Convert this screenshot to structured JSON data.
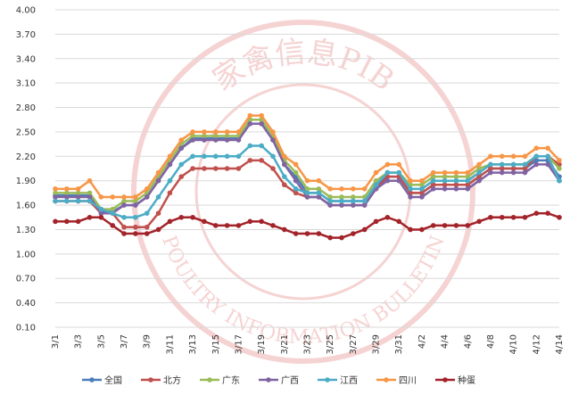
{
  "chart_data": {
    "type": "line",
    "watermark": {
      "top": "家禽信息PIB",
      "bottom": "POULTRY INFORMATION BULLETIN"
    },
    "categories": [
      "3/1",
      null,
      "3/3",
      null,
      "3/5",
      null,
      "3/7",
      null,
      "3/9",
      null,
      "3/11",
      null,
      "3/13",
      null,
      "3/15",
      null,
      "3/17",
      null,
      "3/19",
      null,
      "3/21",
      null,
      "3/23",
      null,
      "3/25",
      null,
      "3/27",
      null,
      "3/29",
      null,
      "3/31",
      null,
      "4/2",
      null,
      "4/4",
      null,
      "4/6",
      null,
      "4/8",
      null,
      "4/10",
      null,
      "4/12",
      null,
      "4/14"
    ],
    "ylim": [
      0.1,
      4.0
    ],
    "yticks": [
      {
        "value": 0.1,
        "label": "0.10"
      },
      {
        "value": 0.4,
        "label": "0.40"
      },
      {
        "value": 0.7,
        "label": "0.70"
      },
      {
        "value": 1.0,
        "label": "1.00"
      },
      {
        "value": 1.3,
        "label": "1.30"
      },
      {
        "value": 1.6,
        "label": "1.60"
      },
      {
        "value": 1.9,
        "label": "1.90"
      },
      {
        "value": 2.2,
        "label": "2.20"
      },
      {
        "value": 2.5,
        "label": "2.50"
      },
      {
        "value": 2.8,
        "label": "2.80"
      },
      {
        "value": 3.1,
        "label": "3.10"
      },
      {
        "value": 3.4,
        "label": "3.40"
      },
      {
        "value": 3.7,
        "label": "3.70"
      },
      {
        "value": 4.0,
        "label": "4.00"
      }
    ],
    "grid": true,
    "legend": "bottom",
    "series": [
      {
        "name": "全国",
        "color": "#4a7ebb",
        "values": [
          1.72,
          1.72,
          1.72,
          1.72,
          1.52,
          1.52,
          1.6,
          1.6,
          1.7,
          1.9,
          2.1,
          2.3,
          2.42,
          2.42,
          2.42,
          2.42,
          2.42,
          2.6,
          2.6,
          2.4,
          2.1,
          1.95,
          1.75,
          1.75,
          1.65,
          1.65,
          1.65,
          1.65,
          1.85,
          1.95,
          1.95,
          1.75,
          1.75,
          1.85,
          1.85,
          1.85,
          1.85,
          1.95,
          2.05,
          2.05,
          2.05,
          2.05,
          2.15,
          2.15,
          1.95
        ]
      },
      {
        "name": "北方",
        "color": "#c0504d",
        "values": [
          1.65,
          1.65,
          1.65,
          1.65,
          1.5,
          1.5,
          1.33,
          1.33,
          1.33,
          1.5,
          1.75,
          1.95,
          2.05,
          2.05,
          2.05,
          2.05,
          2.05,
          2.15,
          2.15,
          2.05,
          1.85,
          1.75,
          1.7,
          1.7,
          1.6,
          1.6,
          1.6,
          1.6,
          1.8,
          1.95,
          1.95,
          1.75,
          1.75,
          1.85,
          1.85,
          1.85,
          1.85,
          1.95,
          2.05,
          2.05,
          2.05,
          2.05,
          2.2,
          2.2,
          2.1
        ]
      },
      {
        "name": "广东",
        "color": "#9bbb59",
        "values": [
          1.75,
          1.75,
          1.75,
          1.75,
          1.55,
          1.55,
          1.65,
          1.65,
          1.75,
          1.95,
          2.15,
          2.35,
          2.45,
          2.45,
          2.45,
          2.45,
          2.45,
          2.65,
          2.65,
          2.45,
          2.15,
          2.0,
          1.8,
          1.8,
          1.7,
          1.7,
          1.7,
          1.7,
          1.9,
          2.0,
          2.0,
          1.85,
          1.85,
          1.95,
          1.95,
          1.95,
          1.95,
          2.05,
          2.1,
          2.1,
          2.1,
          2.1,
          2.2,
          2.2,
          2.05
        ]
      },
      {
        "name": "广西",
        "color": "#8064a2",
        "values": [
          1.7,
          1.7,
          1.7,
          1.7,
          1.5,
          1.5,
          1.6,
          1.6,
          1.7,
          1.9,
          2.1,
          2.3,
          2.4,
          2.4,
          2.4,
          2.4,
          2.4,
          2.6,
          2.6,
          2.4,
          2.1,
          1.9,
          1.7,
          1.7,
          1.6,
          1.6,
          1.6,
          1.6,
          1.8,
          1.9,
          1.9,
          1.7,
          1.7,
          1.8,
          1.8,
          1.8,
          1.8,
          1.9,
          2.0,
          2.0,
          2.0,
          2.0,
          2.1,
          2.1,
          1.9
        ]
      },
      {
        "name": "江西",
        "color": "#4bacc6",
        "values": [
          1.65,
          1.65,
          1.65,
          1.65,
          1.55,
          1.5,
          1.45,
          1.45,
          1.5,
          1.7,
          1.9,
          2.1,
          2.2,
          2.2,
          2.2,
          2.2,
          2.2,
          2.33,
          2.33,
          2.2,
          1.95,
          1.8,
          1.75,
          1.75,
          1.65,
          1.65,
          1.65,
          1.65,
          1.85,
          2.0,
          2.0,
          1.8,
          1.8,
          1.9,
          1.9,
          1.9,
          1.9,
          2.0,
          2.1,
          2.1,
          2.1,
          2.1,
          2.2,
          2.2,
          1.9
        ]
      },
      {
        "name": "四川",
        "color": "#f79646",
        "values": [
          1.8,
          1.8,
          1.8,
          1.9,
          1.7,
          1.7,
          1.7,
          1.7,
          1.8,
          2.0,
          2.2,
          2.4,
          2.5,
          2.5,
          2.5,
          2.5,
          2.5,
          2.7,
          2.7,
          2.5,
          2.2,
          2.1,
          1.9,
          1.9,
          1.8,
          1.8,
          1.8,
          1.8,
          2.0,
          2.1,
          2.1,
          1.9,
          1.9,
          2.0,
          2.0,
          2.0,
          2.0,
          2.1,
          2.2,
          2.2,
          2.2,
          2.2,
          2.3,
          2.3,
          2.15
        ]
      },
      {
        "name": "种蛋",
        "color": "#a3232a",
        "values": [
          1.4,
          1.4,
          1.4,
          1.45,
          1.45,
          1.35,
          1.25,
          1.25,
          1.25,
          1.3,
          1.4,
          1.45,
          1.45,
          1.4,
          1.35,
          1.35,
          1.35,
          1.4,
          1.4,
          1.35,
          1.3,
          1.25,
          1.25,
          1.25,
          1.2,
          1.2,
          1.25,
          1.3,
          1.4,
          1.45,
          1.4,
          1.3,
          1.3,
          1.35,
          1.35,
          1.35,
          1.35,
          1.4,
          1.45,
          1.45,
          1.45,
          1.45,
          1.5,
          1.5,
          1.45
        ]
      }
    ]
  }
}
